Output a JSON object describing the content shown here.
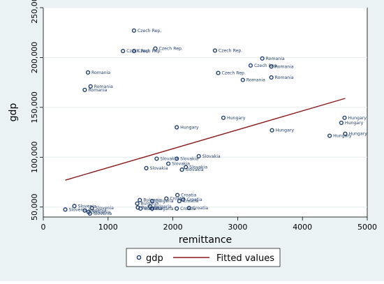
{
  "chart_data": {
    "type": "scatter",
    "xlabel": "remittance",
    "ylabel": "gdp",
    "xlim": [
      0,
      5000
    ],
    "ylim": [
      40000,
      250000
    ],
    "x_ticks": [
      0,
      1000,
      2000,
      3000,
      4000,
      5000
    ],
    "y_ticks": [
      50000,
      100000,
      150000,
      200000,
      250000
    ],
    "x_tick_labels": [
      "0",
      "1000",
      "2000",
      "3000",
      "4000",
      "5000"
    ],
    "y_tick_labels": [
      "50,000",
      "100,000",
      "150,000",
      "200,000",
      "250,000"
    ],
    "grid": true,
    "legend_position": "bottom",
    "legend": [
      "gdp",
      "Fitted values"
    ],
    "colors": {
      "marker": "#1f3e6e",
      "fit": "#8b1a1a",
      "plot_bg": "#ffffff",
      "outer_bg": "#eaf2f3",
      "grid": "#e6ecee"
    },
    "series": [
      {
        "name": "gdp",
        "points": [
          {
            "x": 1400,
            "y": 227000,
            "label": "Czech Rep."
          },
          {
            "x": 1230,
            "y": 206500,
            "label": "Czech Rep."
          },
          {
            "x": 1400,
            "y": 206500,
            "label": "Czech Rep."
          },
          {
            "x": 1730,
            "y": 209000,
            "label": "Czech Rep."
          },
          {
            "x": 2650,
            "y": 207000,
            "label": "Czech Rep."
          },
          {
            "x": 3200,
            "y": 192000,
            "label": "Czech Rep."
          },
          {
            "x": 2700,
            "y": 184500,
            "label": "Czech Rep."
          },
          {
            "x": 3380,
            "y": 199000,
            "label": "Romania"
          },
          {
            "x": 3520,
            "y": 191000,
            "label": "Romania"
          },
          {
            "x": 3520,
            "y": 180000,
            "label": "Romania"
          },
          {
            "x": 3080,
            "y": 177500,
            "label": "Romania"
          },
          {
            "x": 690,
            "y": 185000,
            "label": "Romania"
          },
          {
            "x": 730,
            "y": 171000,
            "label": "Romania"
          },
          {
            "x": 640,
            "y": 167500,
            "label": "Romania"
          },
          {
            "x": 2780,
            "y": 139500,
            "label": "Hungary"
          },
          {
            "x": 2060,
            "y": 130000,
            "label": "Hungary"
          },
          {
            "x": 3530,
            "y": 127000,
            "label": "Hungary"
          },
          {
            "x": 4650,
            "y": 139500,
            "label": "Hungary"
          },
          {
            "x": 4600,
            "y": 134500,
            "label": "Hungary"
          },
          {
            "x": 4660,
            "y": 123500,
            "label": "Hungary"
          },
          {
            "x": 4420,
            "y": 121500,
            "label": "Hungary"
          },
          {
            "x": 2400,
            "y": 101000,
            "label": "Slovakia"
          },
          {
            "x": 1750,
            "y": 98500,
            "label": "Slovakia"
          },
          {
            "x": 2060,
            "y": 98500,
            "label": "Slovakia"
          },
          {
            "x": 1930,
            "y": 93500,
            "label": "Slovakia"
          },
          {
            "x": 2200,
            "y": 90000,
            "label": "Slovakia"
          },
          {
            "x": 1590,
            "y": 89000,
            "label": "Slovakia"
          },
          {
            "x": 2140,
            "y": 87500,
            "label": "Slovakia"
          },
          {
            "x": 2070,
            "y": 62000,
            "label": "Croatia"
          },
          {
            "x": 1900,
            "y": 58500,
            "label": "Croatia"
          },
          {
            "x": 2160,
            "y": 57500,
            "label": "Croatia"
          },
          {
            "x": 2100,
            "y": 56000,
            "label": "Croatia"
          },
          {
            "x": 2250,
            "y": 49000,
            "label": "Croatia"
          },
          {
            "x": 2060,
            "y": 48500,
            "label": "Croatia"
          },
          {
            "x": 1490,
            "y": 57000,
            "label": "Bulgaria"
          },
          {
            "x": 1680,
            "y": 56000,
            "label": "Bulgaria"
          },
          {
            "x": 1450,
            "y": 53500,
            "label": "Bulgaria"
          },
          {
            "x": 1650,
            "y": 50500,
            "label": "Bulgaria"
          },
          {
            "x": 1460,
            "y": 49500,
            "label": "Bulgaria"
          },
          {
            "x": 1680,
            "y": 48500,
            "label": "Bulgaria"
          },
          {
            "x": 1500,
            "y": 48500,
            "label": "Bulgaria"
          },
          {
            "x": 480,
            "y": 51000,
            "label": "Slovenia"
          },
          {
            "x": 750,
            "y": 49000,
            "label": "Slovenia"
          },
          {
            "x": 340,
            "y": 47500,
            "label": "Slovenia"
          },
          {
            "x": 640,
            "y": 46500,
            "label": "Slovenia"
          },
          {
            "x": 700,
            "y": 45000,
            "label": "Slovenia"
          },
          {
            "x": 720,
            "y": 43500,
            "label": "Slovenia"
          }
        ]
      },
      {
        "name": "Fitted values",
        "type": "line",
        "points": [
          {
            "x": 340,
            "y": 77000
          },
          {
            "x": 4660,
            "y": 159000
          }
        ]
      }
    ]
  }
}
